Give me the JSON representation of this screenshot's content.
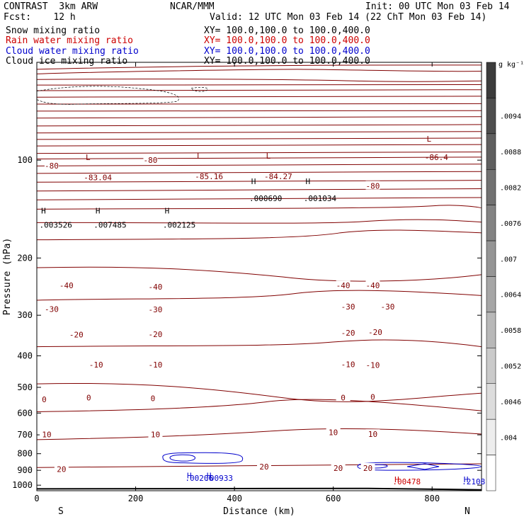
{
  "header": {
    "title_left": "CONTRAST  3km ARW",
    "title_center": "NCAR/MMM",
    "init": "Init: 00 UTC Mon 03 Feb 14",
    "fcst": "Fcst:    12 h",
    "valid": "Valid: 12 UTC Mon 03 Feb 14 (22 ChT Mon 03 Feb 14)",
    "lines": [
      {
        "label": "Snow mixing ratio",
        "xy": "XY= 100.0,100.0 to 100.0,400.0",
        "color": "#000000"
      },
      {
        "label": "Rain water mixing ratio",
        "xy": "XY= 100.0,100.0 to 100.0,400.0",
        "color": "#cc0000"
      },
      {
        "label": "Cloud water mixing ratio",
        "xy": "XY= 100.0,100.0 to 100.0,400.0",
        "color": "#0000cc"
      },
      {
        "label": "Cloud ice mixing ratio",
        "xy": "XY= 100.0,100.0 to 100.0,400.0",
        "color": "#000000"
      }
    ]
  },
  "chart_data": {
    "type": "contour",
    "xlabel": "Distance (km)",
    "ylabel": "Pressure (hPa)",
    "xlim": [
      0,
      900
    ],
    "ylim": [
      1040,
      50
    ],
    "x_ticks": [
      0,
      200,
      400,
      600,
      800
    ],
    "y_ticks": [
      100,
      200,
      300,
      400,
      500,
      600,
      700,
      800,
      900,
      1000
    ],
    "x_end_labels": {
      "left": "S",
      "right": "N"
    },
    "colorbar": {
      "unit": "g kg⁻¹",
      "labels": [
        ".0094",
        ".0088",
        ".0082",
        ".0076",
        ".007",
        ".0064",
        ".0058",
        ".0052",
        ".0046",
        ".004"
      ]
    },
    "temperature_labels": [
      {
        "text": "-80",
        "x": 30,
        "p": 104
      },
      {
        "text": "-80",
        "x": 230,
        "p": 100
      },
      {
        "text": "-80",
        "x": 680,
        "p": 120
      },
      {
        "text": "-40",
        "x": 60,
        "p": 243
      },
      {
        "text": "-40",
        "x": 240,
        "p": 245
      },
      {
        "text": "-40",
        "x": 620,
        "p": 243
      },
      {
        "text": "-40",
        "x": 680,
        "p": 243
      },
      {
        "text": "-30",
        "x": 30,
        "p": 287
      },
      {
        "text": "-30",
        "x": 240,
        "p": 288
      },
      {
        "text": "-30",
        "x": 630,
        "p": 282
      },
      {
        "text": "-30",
        "x": 710,
        "p": 282
      },
      {
        "text": "-20",
        "x": 80,
        "p": 344
      },
      {
        "text": "-20",
        "x": 240,
        "p": 343
      },
      {
        "text": "-20",
        "x": 630,
        "p": 340
      },
      {
        "text": "-20",
        "x": 685,
        "p": 338
      },
      {
        "text": "-10",
        "x": 120,
        "p": 426
      },
      {
        "text": "-10",
        "x": 240,
        "p": 426
      },
      {
        "text": "-10",
        "x": 630,
        "p": 425
      },
      {
        "text": "-10",
        "x": 680,
        "p": 427
      },
      {
        "text": "0",
        "x": 15,
        "p": 545
      },
      {
        "text": "0",
        "x": 105,
        "p": 538
      },
      {
        "text": "0",
        "x": 235,
        "p": 540
      },
      {
        "text": "0",
        "x": 620,
        "p": 538
      },
      {
        "text": "0",
        "x": 680,
        "p": 535
      },
      {
        "text": "10",
        "x": 20,
        "p": 698
      },
      {
        "text": "10",
        "x": 240,
        "p": 698
      },
      {
        "text": "10",
        "x": 600,
        "p": 688
      },
      {
        "text": "10",
        "x": 680,
        "p": 697
      },
      {
        "text": "20",
        "x": 50,
        "p": 893
      },
      {
        "text": "20",
        "x": 460,
        "p": 877
      },
      {
        "text": "20",
        "x": 610,
        "p": 885
      },
      {
        "text": "20",
        "x": 670,
        "p": 885
      }
    ],
    "extrema": [
      {
        "letter": "L",
        "value": "-83.04",
        "x": 95,
        "p": 98,
        "value_p": 113,
        "color": "#800000"
      },
      {
        "letter": "L",
        "value": "-85.16",
        "x": 320,
        "p": 97,
        "value_p": 112,
        "color": "#800000"
      },
      {
        "letter": "L",
        "value": "-84.27",
        "x": 460,
        "p": 97,
        "value_p": 112,
        "color": "#800000"
      },
      {
        "letter": "L",
        "value": "-86.4",
        "x": 785,
        "p": 86,
        "value_p": 98,
        "color": "#800000"
      },
      {
        "letter": "H",
        "value": ".000690",
        "x": 430,
        "p": 116,
        "value_p": 131,
        "color": "#000000"
      },
      {
        "letter": "H",
        "value": ".001034",
        "x": 540,
        "p": 116,
        "value_p": 131,
        "color": "#000000"
      },
      {
        "letter": "H",
        "value": ".003526",
        "x": 5,
        "p": 143,
        "value_p": 158,
        "color": "#000000"
      },
      {
        "letter": "H",
        "value": ".007485",
        "x": 115,
        "p": 143,
        "value_p": 158,
        "color": "#000000"
      },
      {
        "letter": "H",
        "value": ".002125",
        "x": 255,
        "p": 143,
        "value_p": 158,
        "color": "#000000"
      },
      {
        "letter": "H",
        "value": ".00206",
        "x": 300,
        "p": 934,
        "value_p": 950,
        "color": "#0000cc"
      },
      {
        "letter": "H",
        "value": ".00933",
        "x": 340,
        "p": 934,
        "value_p": 950,
        "color": "#0000cc"
      },
      {
        "letter": "H",
        "value": ".00478",
        "x": 720,
        "p": 960,
        "value_p": 975,
        "color": "#cc0000"
      },
      {
        "letter": "H",
        "value": ".2108",
        "x": 860,
        "p": 960,
        "value_p": 975,
        "color": "#0000cc"
      }
    ]
  }
}
